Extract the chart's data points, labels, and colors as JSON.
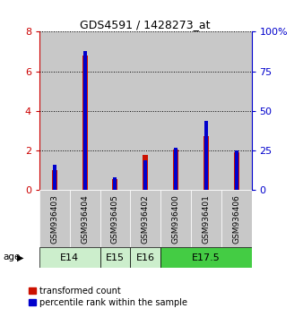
{
  "title": "GDS4591 / 1428273_at",
  "samples": [
    "GSM936403",
    "GSM936404",
    "GSM936405",
    "GSM936402",
    "GSM936400",
    "GSM936401",
    "GSM936406"
  ],
  "red_values": [
    1.0,
    6.8,
    0.55,
    1.8,
    2.05,
    2.75,
    1.9
  ],
  "blue_values_pct": [
    16,
    88,
    8,
    19,
    27,
    44,
    25
  ],
  "ylim_left": [
    0,
    8
  ],
  "ylim_right": [
    0,
    100
  ],
  "yticks_left": [
    0,
    2,
    4,
    6,
    8
  ],
  "yticks_right": [
    0,
    25,
    50,
    75,
    100
  ],
  "ytick_right_labels": [
    "0",
    "25",
    "50",
    "75",
    "100%"
  ],
  "left_axis_color": "#cc0000",
  "right_axis_color": "#0000cc",
  "red_color": "#cc1100",
  "blue_color": "#0000cc",
  "bar_width": 0.18,
  "blue_bar_width": 0.12,
  "legend_red": "transformed count",
  "legend_blue": "percentile rank within the sample",
  "sample_bg_color": "#c8c8c8",
  "age_groups": [
    {
      "label": "E14",
      "start": 0,
      "end": 2,
      "color": "#cceecc"
    },
    {
      "label": "E15",
      "start": 2,
      "end": 3,
      "color": "#cceecc"
    },
    {
      "label": "E16",
      "start": 3,
      "end": 4,
      "color": "#cceecc"
    },
    {
      "label": "E17.5",
      "start": 4,
      "end": 7,
      "color": "#44cc44"
    }
  ]
}
